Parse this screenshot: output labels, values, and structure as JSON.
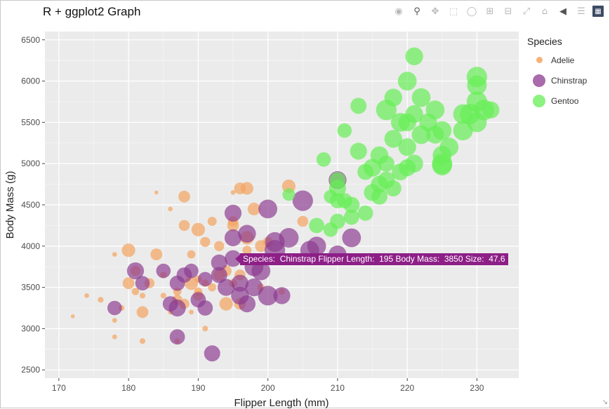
{
  "title": "R + ggplot2 Graph",
  "modebar": {
    "icons": [
      "camera-icon",
      "zoom-icon",
      "pan-icon",
      "box-select-icon",
      "lasso-icon",
      "zoom-in-icon",
      "zoom-out-icon",
      "autoscale-icon",
      "reset-axes-icon",
      "hover-closest-icon",
      "hover-compare-icon",
      "plotly-logo-icon"
    ]
  },
  "colors": {
    "Adelie": "#f4a460",
    "Chinstrap": "#8b3a8f",
    "Gentoo": "#66ee55",
    "panel": "#ebebeb",
    "tooltip": "#8d1f87"
  },
  "legend": {
    "title": "Species",
    "items": [
      {
        "label": "Adelie",
        "color": "#f4a460"
      },
      {
        "label": "Chinstrap",
        "color": "#8b3a8f"
      },
      {
        "label": "Gentoo",
        "color": "#66ee55"
      }
    ]
  },
  "tooltip": {
    "text": "Species:  Chinstrap Flipper Length:  195 Body Mass:  3850 Size:  47.6"
  },
  "chart_data": {
    "type": "scatter",
    "title": "R + ggplot2 Graph",
    "xlabel": "Flipper Length (mm)",
    "ylabel": "Body Mass (g)",
    "xlim": [
      168,
      236
    ],
    "ylim": [
      2400,
      6600
    ],
    "xticks": [
      170,
      180,
      190,
      200,
      210,
      220,
      230
    ],
    "yticks": [
      2500,
      3000,
      3500,
      4000,
      4500,
      5000,
      5500,
      6000,
      6500
    ],
    "xtick_labels": [
      "170",
      "180",
      "190",
      "200",
      "210",
      "220",
      "230"
    ],
    "ytick_labels": [
      "2500",
      "3000",
      "3500",
      "4000",
      "4500",
      "5000",
      "5500",
      "6000",
      "6500"
    ],
    "grid": true,
    "legend_position": "right",
    "series": [
      {
        "name": "Adelie",
        "points": [
          [
            172,
            3150,
            33
          ],
          [
            174,
            3400,
            34
          ],
          [
            176,
            3350,
            35
          ],
          [
            178,
            3900,
            34
          ],
          [
            178,
            3100,
            34
          ],
          [
            178,
            2900,
            34
          ],
          [
            179,
            3250,
            35
          ],
          [
            180,
            3950,
            44
          ],
          [
            180,
            3550,
            42
          ],
          [
            181,
            3450,
            37
          ],
          [
            181,
            3700,
            40
          ],
          [
            182,
            3200,
            42
          ],
          [
            182,
            3400,
            35
          ],
          [
            182,
            2850,
            35
          ],
          [
            183,
            3550,
            40
          ],
          [
            184,
            3900,
            42
          ],
          [
            184,
            4650,
            33
          ],
          [
            185,
            3400,
            35
          ],
          [
            185,
            3650,
            36
          ],
          [
            186,
            3200,
            34
          ],
          [
            186,
            4450,
            34
          ],
          [
            187,
            3450,
            38
          ],
          [
            187,
            3350,
            40
          ],
          [
            187,
            2850,
            35
          ],
          [
            188,
            3300,
            40
          ],
          [
            188,
            4250,
            41
          ],
          [
            188,
            4600,
            42
          ],
          [
            189,
            3550,
            44
          ],
          [
            189,
            3900,
            38
          ],
          [
            189,
            3200,
            34
          ],
          [
            190,
            4200,
            44
          ],
          [
            190,
            3400,
            40
          ],
          [
            190,
            3450,
            38
          ],
          [
            190,
            3600,
            37
          ],
          [
            191,
            4050,
            40
          ],
          [
            191,
            3550,
            37
          ],
          [
            191,
            3000,
            35
          ],
          [
            192,
            3500,
            38
          ],
          [
            192,
            4300,
            39
          ],
          [
            193,
            3650,
            42
          ],
          [
            193,
            4000,
            40
          ],
          [
            194,
            3300,
            44
          ],
          [
            194,
            3700,
            41
          ],
          [
            195,
            3550,
            38
          ],
          [
            195,
            4250,
            42
          ],
          [
            195,
            4300,
            40
          ],
          [
            196,
            3650,
            41
          ],
          [
            196,
            3300,
            42
          ],
          [
            197,
            4100,
            44
          ],
          [
            197,
            3950,
            39
          ],
          [
            197,
            4700,
            43
          ],
          [
            198,
            4450,
            43
          ],
          [
            199,
            4000,
            42
          ],
          [
            199,
            3500,
            37
          ],
          [
            200,
            4050,
            40
          ],
          [
            202,
            3450,
            36
          ],
          [
            203,
            4725,
            44
          ],
          [
            205,
            4300,
            41
          ],
          [
            196,
            4700,
            42
          ],
          [
            195,
            4650,
            34
          ]
        ]
      },
      {
        "name": "Chinstrap",
        "points": [
          [
            178,
            3250,
            45
          ],
          [
            181,
            3700,
            48
          ],
          [
            182,
            3550,
            45
          ],
          [
            185,
            3700,
            45
          ],
          [
            186,
            3300,
            46
          ],
          [
            187,
            3250,
            48
          ],
          [
            187,
            3550,
            46
          ],
          [
            187,
            2900,
            46
          ],
          [
            188,
            3650,
            46
          ],
          [
            189,
            3700,
            45
          ],
          [
            190,
            3350,
            46
          ],
          [
            191,
            3600,
            45
          ],
          [
            191,
            3250,
            46
          ],
          [
            192,
            2700,
            47
          ],
          [
            193,
            3650,
            47
          ],
          [
            193,
            3800,
            47
          ],
          [
            194,
            3500,
            48
          ],
          [
            195,
            3850,
            47.6
          ],
          [
            195,
            4400,
            48
          ],
          [
            195,
            4100,
            48
          ],
          [
            196,
            3400,
            49
          ],
          [
            196,
            3550,
            48
          ],
          [
            197,
            4150,
            49
          ],
          [
            197,
            3300,
            48
          ],
          [
            198,
            3750,
            50
          ],
          [
            198,
            3500,
            49
          ],
          [
            199,
            3700,
            50
          ],
          [
            200,
            3400,
            51
          ],
          [
            201,
            4050,
            51
          ],
          [
            201,
            3950,
            52
          ],
          [
            202,
            3400,
            48
          ],
          [
            203,
            4100,
            51
          ],
          [
            205,
            4550,
            52
          ],
          [
            206,
            3950,
            50
          ],
          [
            207,
            4000,
            50
          ],
          [
            210,
            3900,
            49
          ],
          [
            212,
            4100,
            50
          ],
          [
            210,
            4800,
            49
          ],
          [
            200,
            4450,
            50
          ]
        ]
      },
      {
        "name": "Gentoo",
        "points": [
          [
            203,
            4625,
            43
          ],
          [
            207,
            4250,
            46
          ],
          [
            208,
            5050,
            45
          ],
          [
            209,
            4600,
            44
          ],
          [
            209,
            4200,
            45
          ],
          [
            210,
            4800,
            47
          ],
          [
            210,
            4550,
            46
          ],
          [
            210,
            4300,
            46
          ],
          [
            210,
            4700,
            48
          ],
          [
            211,
            5400,
            45
          ],
          [
            211,
            4550,
            46
          ],
          [
            212,
            4350,
            46
          ],
          [
            212,
            4500,
            47
          ],
          [
            213,
            5700,
            47
          ],
          [
            213,
            5150,
            48
          ],
          [
            214,
            4900,
            47
          ],
          [
            214,
            4400,
            46
          ],
          [
            215,
            4950,
            49
          ],
          [
            215,
            4650,
            48
          ],
          [
            216,
            5100,
            49
          ],
          [
            216,
            4750,
            48
          ],
          [
            216,
            4600,
            47
          ],
          [
            217,
            4800,
            48
          ],
          [
            217,
            5000,
            47
          ],
          [
            218,
            5800,
            49
          ],
          [
            218,
            4700,
            47
          ],
          [
            218,
            5300,
            49
          ],
          [
            219,
            5500,
            50
          ],
          [
            219,
            4900,
            48
          ],
          [
            220,
            5200,
            49
          ],
          [
            220,
            5500,
            49
          ],
          [
            220,
            4950,
            48
          ],
          [
            221,
            5600,
            49
          ],
          [
            221,
            5000,
            49
          ],
          [
            221,
            6300,
            49
          ],
          [
            222,
            5800,
            50
          ],
          [
            222,
            5350,
            50
          ],
          [
            223,
            5500,
            49
          ],
          [
            224,
            5350,
            49
          ],
          [
            224,
            5650,
            50
          ],
          [
            225,
            5100,
            50
          ],
          [
            225,
            4975,
            51
          ],
          [
            225,
            5400,
            50
          ],
          [
            226,
            5200,
            50
          ],
          [
            228,
            5400,
            51
          ],
          [
            228,
            5600,
            51
          ],
          [
            229,
            5600,
            52
          ],
          [
            230,
            5950,
            51
          ],
          [
            230,
            5750,
            52
          ],
          [
            230,
            5500,
            51
          ],
          [
            231,
            5650,
            52
          ],
          [
            230,
            6050,
            52
          ],
          [
            232,
            5650,
            48
          ],
          [
            225,
            5000,
            52
          ],
          [
            220,
            6000,
            50
          ],
          [
            217,
            5650,
            52
          ]
        ]
      }
    ]
  }
}
